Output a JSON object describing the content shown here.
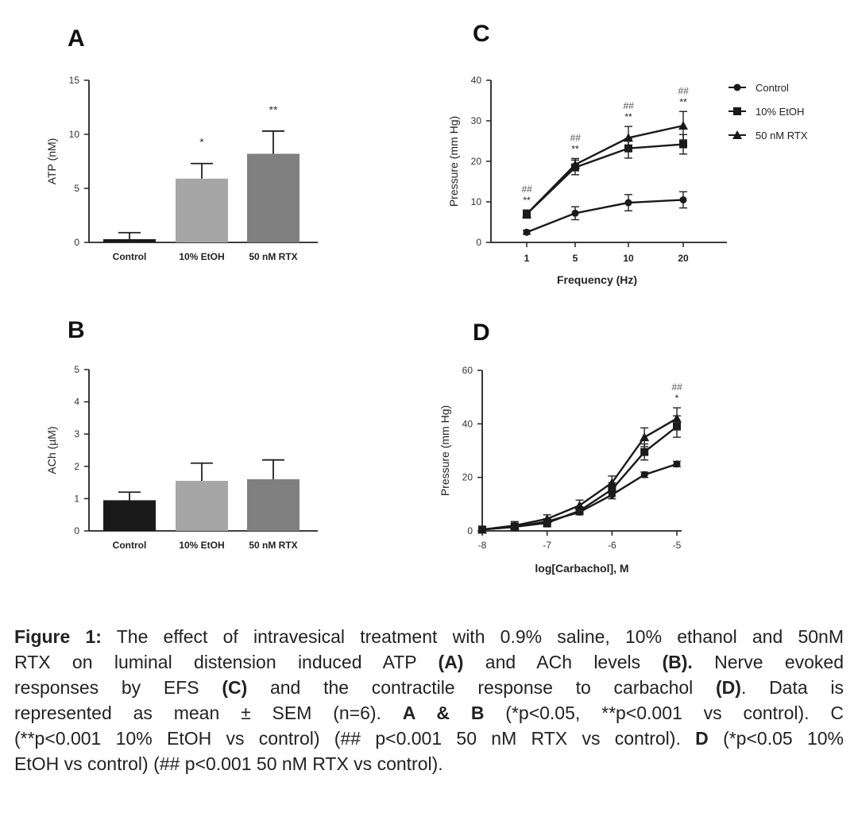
{
  "panels": {
    "A": {
      "panel_label": "A",
      "chart_data": {
        "type": "bar",
        "categories": [
          "Control",
          "10% EtOH",
          "50 nM RTX"
        ],
        "values": [
          0.3,
          5.9,
          8.2
        ],
        "errors": [
          0.6,
          1.4,
          2.1
        ],
        "significance": [
          "",
          "*",
          "**"
        ],
        "ylabel": "ATP (nM)",
        "ylim": [
          0,
          15
        ],
        "yticks": [
          "0",
          "5",
          "10",
          "15"
        ],
        "colors": [
          "#1a1a1a",
          "#a6a6a6",
          "#808080"
        ]
      }
    },
    "B": {
      "panel_label": "B",
      "chart_data": {
        "type": "bar",
        "categories": [
          "Control",
          "10% EtOH",
          "50 nM RTX"
        ],
        "values": [
          0.95,
          1.55,
          1.6
        ],
        "errors": [
          0.25,
          0.55,
          0.6
        ],
        "significance": [
          "",
          "",
          ""
        ],
        "ylabel": "ACh (µM)",
        "ylim": [
          0,
          5
        ],
        "yticks": [
          "0",
          "1",
          "2",
          "3",
          "4",
          "5"
        ],
        "colors": [
          "#1a1a1a",
          "#a6a6a6",
          "#808080"
        ]
      }
    },
    "C": {
      "panel_label": "C",
      "chart_data": {
        "type": "line",
        "categories": [
          "1",
          "5",
          "10",
          "20"
        ],
        "xlabel": "Frequency (Hz)",
        "ylabel": "Pressure (mm Hg)",
        "ylim": [
          0,
          40
        ],
        "yticks": [
          "0",
          "10",
          "20",
          "30",
          "40"
        ],
        "legend_position": "top-right",
        "series": [
          {
            "name": "Control",
            "marker": "circle",
            "values": [
              2.5,
              7.2,
              9.8,
              10.5
            ],
            "errors": [
              0.5,
              1.6,
              2.0,
              2.0
            ]
          },
          {
            "name": "10% EtOH",
            "marker": "square",
            "values": [
              7.0,
              18.5,
              23.2,
              24.2
            ],
            "errors": [
              1.0,
              1.8,
              2.4,
              2.4
            ]
          },
          {
            "name": "50 nM RTX",
            "marker": "triangle",
            "values": [
              7.0,
              19.2,
              25.8,
              28.8
            ],
            "errors": [
              1.0,
              1.5,
              2.8,
              3.5
            ]
          }
        ],
        "annotations": [
          {
            "x": "1",
            "hash": "##",
            "star": "**"
          },
          {
            "x": "5",
            "hash": "##",
            "star": "**"
          },
          {
            "x": "10",
            "hash": "##",
            "star": "**"
          },
          {
            "x": "20",
            "hash": "##",
            "star": "**"
          }
        ]
      }
    },
    "D": {
      "panel_label": "D",
      "chart_data": {
        "type": "line",
        "xlabel": "log[Carbachol], M",
        "ylabel": "Pressure (mm Hg)",
        "xlim": [
          -8,
          -5
        ],
        "xticks": [
          -8,
          -7,
          -6,
          -5
        ],
        "xtick_labels": [
          "-8",
          "-7",
          "-6",
          "-5"
        ],
        "ylim": [
          0,
          60
        ],
        "yticks": [
          "0",
          "20",
          "40",
          "60"
        ],
        "series": [
          {
            "name": "Control",
            "marker": "circle",
            "x": [
              -8,
              -7.5,
              -7,
              -6.5,
              -6,
              -5.5,
              -5
            ],
            "values": [
              0.5,
              1.5,
              3.5,
              7.0,
              13.5,
              21.0,
              25.0
            ],
            "errors": [
              0.5,
              0.8,
              1.0,
              1.0,
              1.5,
              1.0,
              1.0
            ]
          },
          {
            "name": "10% EtOH",
            "marker": "square",
            "x": [
              -8,
              -7.5,
              -7,
              -6.5,
              -6,
              -5.5,
              -5
            ],
            "values": [
              0.5,
              1.5,
              3.0,
              7.5,
              15.5,
              29.5,
              39.0
            ],
            "errors": [
              0.8,
              1.5,
              1.5,
              1.5,
              2.5,
              3.0,
              4.0
            ]
          },
          {
            "name": "50 nM RTX",
            "marker": "triangle",
            "x": [
              -8,
              -7.5,
              -7,
              -6.5,
              -6,
              -5.5,
              -5
            ],
            "values": [
              0.5,
              2.0,
              4.5,
              9.5,
              18.0,
              35.0,
              42.0
            ],
            "errors": [
              0.8,
              1.5,
              1.5,
              2.0,
              2.5,
              3.5,
              4.0
            ]
          }
        ],
        "annotations": [
          {
            "x": -5,
            "hash": "##",
            "star": "*"
          }
        ]
      }
    }
  },
  "caption": {
    "lines": [
      [
        {
          "b": "Figure 1:"
        },
        {
          "t": " The effect of intravesical treatment with 0.9% saline, 10% ethanol and 50nM"
        }
      ],
      [
        {
          "t": "RTX on luminal distension induced ATP "
        },
        {
          "b": "(A)"
        },
        {
          "t": " and ACh levels "
        },
        {
          "b": "(B)."
        },
        {
          "t": " Nerve evoked"
        }
      ],
      [
        {
          "t": "responses by EFS "
        },
        {
          "b": "(C)"
        },
        {
          "t": " and the contractile response to carbachol "
        },
        {
          "b": "(D)"
        },
        {
          "t": ". Data is"
        }
      ],
      [
        {
          "t": "represented as mean ± SEM (n=6). "
        },
        {
          "b": "A & B"
        },
        {
          "t": " (*p<0.05, **p<0.001 vs control). C"
        }
      ],
      [
        {
          "t": "(**p<0.001 10% EtOH vs control) (## p<0.001 50 nM RTX vs control). "
        },
        {
          "b": "D"
        },
        {
          "t": " (*p<0.05 10%"
        }
      ],
      [
        {
          "t": "EtOH vs control) (## p<0.001 50 nM RTX vs control)."
        }
      ]
    ]
  }
}
